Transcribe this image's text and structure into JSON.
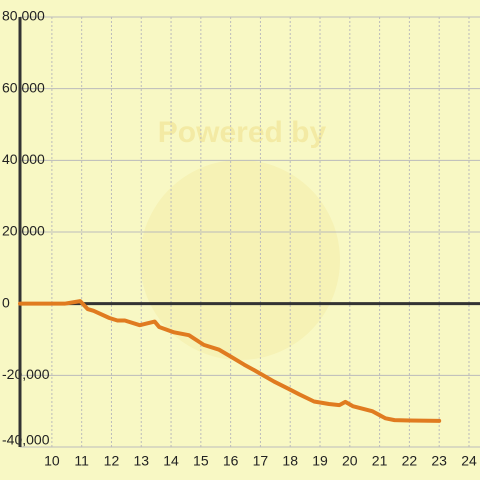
{
  "chart_data": {
    "type": "line",
    "watermark": "Powered by",
    "series": [
      {
        "color": "#e07b20",
        "x": [
          8.93,
          10.43,
          10.95,
          11.2,
          11.4,
          11.93,
          12.2,
          12.45,
          12.95,
          13.45,
          13.6,
          14.1,
          14.6,
          15.1,
          15.6,
          15.95,
          16.45,
          16.95,
          17.45,
          17.95,
          18.3,
          18.8,
          19.3,
          19.65,
          19.85,
          20.1,
          20.75,
          21.2,
          21.5,
          22,
          23
        ],
        "values": [
          0,
          0,
          700,
          -1500,
          -2000,
          -4000,
          -4700,
          -4700,
          -6000,
          -5000,
          -6500,
          -8000,
          -8800,
          -11500,
          -12800,
          -14500,
          -17000,
          -19300,
          -21700,
          -23800,
          -25300,
          -27300,
          -28000,
          -28300,
          -27400,
          -28600,
          -30000,
          -32000,
          -32500,
          -32600,
          -32700
        ]
      }
    ],
    "xlim": [
      8.93,
      24.37
    ],
    "xticks": [
      10,
      11,
      12,
      13,
      14,
      15,
      16,
      17,
      18,
      19,
      20,
      21,
      22,
      23,
      24
    ],
    "ylim": [
      -40000,
      80000
    ],
    "yticks": [
      {
        "value": -40000,
        "label": "-40,000"
      },
      {
        "value": -20000,
        "label": "-20,000"
      },
      0,
      {
        "value": 20000,
        "label": "20,000"
      },
      {
        "value": 40000,
        "label": "40,000"
      },
      {
        "value": 60000,
        "label": "60,000"
      },
      {
        "value": 80000,
        "label": "80,000"
      }
    ],
    "grid": true,
    "background": "#f8f8c4"
  }
}
